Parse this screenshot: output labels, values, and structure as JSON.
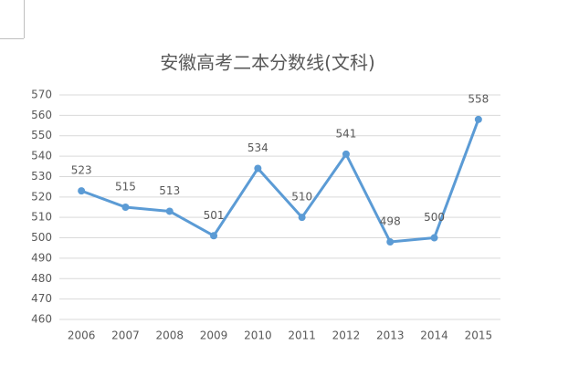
{
  "chart_data": {
    "type": "line",
    "title": "安徽高考二本分数线(文科)",
    "categories": [
      "2006",
      "2007",
      "2008",
      "2009",
      "2010",
      "2011",
      "2012",
      "2013",
      "2014",
      "2015"
    ],
    "series": [
      {
        "color": "#5b9bd5",
        "values": [
          523,
          515,
          513,
          501,
          534,
          510,
          541,
          498,
          500,
          558
        ]
      }
    ],
    "ylim": [
      460,
      570
    ],
    "yticks": [
      460,
      470,
      480,
      490,
      500,
      510,
      520,
      530,
      540,
      550,
      560,
      570
    ],
    "grid": true
  }
}
